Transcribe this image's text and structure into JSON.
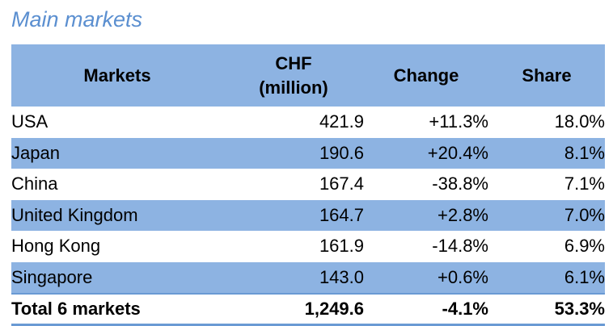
{
  "title": "Main markets",
  "chart_data": {
    "type": "table",
    "title": "Main markets",
    "columns": [
      "Markets",
      "CHF (million)",
      "Change",
      "Share"
    ],
    "header": {
      "markets": "Markets",
      "chf_line1": "CHF",
      "chf_line2": "(million)",
      "change": "Change",
      "share": "Share"
    },
    "rows": [
      {
        "market": "USA",
        "chf": "421.9",
        "change": "+11.3%",
        "share": "18.0%"
      },
      {
        "market": "Japan",
        "chf": "190.6",
        "change": "+20.4%",
        "share": "8.1%"
      },
      {
        "market": "China",
        "chf": "167.4",
        "change": "-38.8%",
        "share": "7.1%"
      },
      {
        "market": "United Kingdom",
        "chf": "164.7",
        "change": "+2.8%",
        "share": "7.0%"
      },
      {
        "market": "Hong Kong",
        "chf": "161.9",
        "change": "-14.8%",
        "share": "6.9%"
      },
      {
        "market": "Singapore",
        "chf": "143.0",
        "change": "+0.6%",
        "share": "6.1%"
      }
    ],
    "total": {
      "market": "Total 6 markets",
      "chf": "1,249.6",
      "change": "-4.1%",
      "share": "53.3%"
    }
  },
  "colors": {
    "title": "#5b8fd0",
    "band": "#8db3e2",
    "rule": "#6a9ad4"
  }
}
